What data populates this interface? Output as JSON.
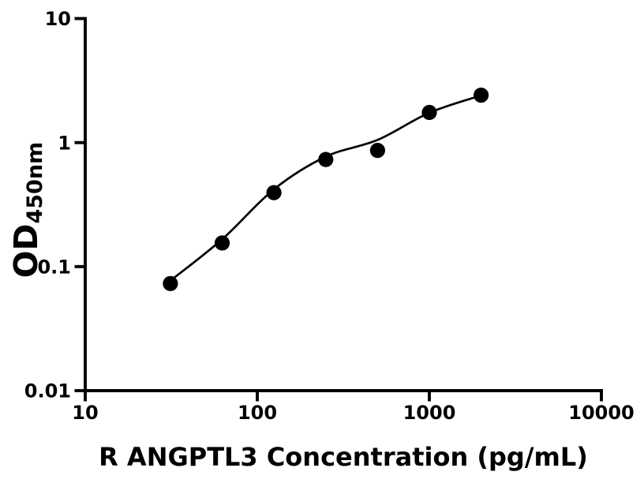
{
  "figure": {
    "background_color": "#ffffff",
    "foreground_color": "#000000"
  },
  "chart_data": {
    "type": "scatter",
    "title": "",
    "xlabel": "R ANGPTL3 Concentration (pg/mL)",
    "ylabel": {
      "main": "OD",
      "sub": "450nm"
    },
    "x_scale": "log",
    "y_scale": "log",
    "xlim": [
      10,
      10000
    ],
    "ylim": [
      0.01,
      10
    ],
    "grid": false,
    "legend": "none",
    "x_ticks": [
      {
        "value": 10,
        "label": "10"
      },
      {
        "value": 100,
        "label": "100"
      },
      {
        "value": 1000,
        "label": "1000"
      },
      {
        "value": 10000,
        "label": "10000"
      }
    ],
    "y_ticks": [
      {
        "value": 10,
        "label": "10"
      },
      {
        "value": 1,
        "label": "1"
      },
      {
        "value": 0.1,
        "label": "0.1"
      },
      {
        "value": 0.01,
        "label": "0.01"
      }
    ],
    "series": [
      {
        "name": "standard-points",
        "marker": "circle",
        "color": "#000000",
        "x": [
          31.25,
          62.5,
          125,
          250,
          500,
          1000,
          2000
        ],
        "y": [
          0.073,
          0.155,
          0.395,
          0.73,
          0.865,
          1.75,
          2.41
        ]
      }
    ],
    "fit_curve": {
      "name": "fitted-standard-curve",
      "color": "#000000",
      "x": [
        31.25,
        62.5,
        125,
        250,
        500,
        1000,
        2000
      ],
      "y": [
        0.077,
        0.166,
        0.42,
        0.77,
        1.05,
        1.74,
        2.4
      ]
    }
  }
}
